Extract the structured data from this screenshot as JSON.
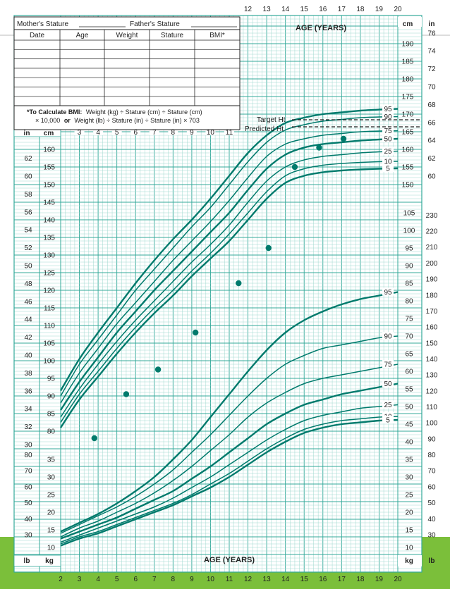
{
  "colors": {
    "grid": "#33a99a",
    "grid_fine": "#9fd8cf",
    "curve": "#007a6c",
    "dot": "#007a6c",
    "bottom_band": "#7bbf3a",
    "ink": "#1f1f1f"
  },
  "record_table": {
    "mother_label": "Mother's Stature",
    "father_label": "Father's Stature",
    "headers": [
      "Date",
      "Age",
      "Weight",
      "Stature",
      "BMI*"
    ],
    "bmi_note_bold": "*To Calculate BMI:",
    "bmi_note_line1": "Weight (kg) ÷ Stature (cm) ÷ Stature (cm)",
    "bmi_note_line2": "× 10,000",
    "bmi_note_or": "or",
    "bmi_note_line3": "Weight (lb) ÷ Stature (in) ÷ Stature (in) × 703"
  },
  "labels": {
    "age_title_top": "AGE (YEARS)",
    "age_title_bottom": "AGE (YEARS)",
    "target_ht": "Target Ht",
    "predicted_ht": "Predicted Ht",
    "unit_in": "in",
    "unit_cm": "cm",
    "unit_lb": "lb",
    "unit_kg": "kg"
  },
  "chart_data": {
    "type": "line",
    "x_label": "AGE (YEARS)",
    "x_ticks_top": [
      "12",
      "13",
      "14",
      "15",
      "16",
      "17",
      "18",
      "19",
      "20"
    ],
    "x_ticks_mid": [
      "3",
      "4",
      "5",
      "6",
      "7",
      "8",
      "9",
      "10",
      "11"
    ],
    "x_ticks_bottom": [
      "2",
      "3",
      "4",
      "5",
      "6",
      "7",
      "8",
      "9",
      "10",
      "11",
      "12",
      "13",
      "14",
      "15",
      "16",
      "17",
      "18",
      "19",
      "20"
    ],
    "xlim": [
      2,
      20
    ],
    "stature": {
      "ylim_cm": [
        75,
        197
      ],
      "left_cm_ticks": [
        "80",
        "85",
        "90",
        "95",
        "100",
        "105",
        "110",
        "115",
        "120",
        "125",
        "130",
        "135",
        "140",
        "145",
        "150",
        "155",
        "160"
      ],
      "left_in_ticks": [
        "30",
        "32",
        "34",
        "36",
        "38",
        "40",
        "42",
        "44",
        "46",
        "48",
        "50",
        "52",
        "54",
        "56",
        "58",
        "60",
        "62"
      ],
      "right_cm_ticks_upper": [
        "150",
        "155",
        "160",
        "165",
        "170",
        "175",
        "180",
        "185",
        "190"
      ],
      "right_in_ticks_upper": [
        "60",
        "62",
        "64",
        "66",
        "68",
        "70",
        "72",
        "74",
        "76"
      ],
      "percentile_labels": [
        "95",
        "90",
        "75",
        "50",
        "25",
        "10",
        "5"
      ],
      "series": [
        {
          "name": "95",
          "x": [
            2,
            3,
            4,
            5,
            6,
            7,
            8,
            9,
            10,
            11,
            12,
            13,
            14,
            15,
            16,
            17,
            18,
            19,
            20
          ],
          "y": [
            91.5,
            100.5,
            108,
            115,
            122,
            128.5,
            134.5,
            140,
            146,
            152.5,
            159,
            164,
            167.5,
            169,
            170,
            170.5,
            171,
            171.3,
            171.5
          ]
        },
        {
          "name": "90",
          "x": [
            2,
            3,
            4,
            5,
            6,
            7,
            8,
            9,
            10,
            11,
            12,
            13,
            14,
            15,
            16,
            17,
            18,
            19,
            20
          ],
          "y": [
            90,
            99,
            106,
            113,
            120,
            126,
            132,
            138,
            143.5,
            150,
            156.5,
            162,
            165.5,
            167,
            168,
            168.5,
            169,
            169.2,
            169.3
          ]
        },
        {
          "name": "75",
          "x": [
            2,
            3,
            4,
            5,
            6,
            7,
            8,
            9,
            10,
            11,
            12,
            13,
            14,
            15,
            16,
            17,
            18,
            19,
            20
          ],
          "y": [
            88,
            96.5,
            103.5,
            110.5,
            116.5,
            122.5,
            128.5,
            134,
            139.5,
            145.5,
            152,
            158,
            161.5,
            163,
            164,
            164.5,
            165,
            165.2,
            165.3
          ]
        },
        {
          "name": "50",
          "x": [
            2,
            3,
            4,
            5,
            6,
            7,
            8,
            9,
            10,
            11,
            12,
            13,
            14,
            15,
            16,
            17,
            18,
            19,
            20
          ],
          "y": [
            86,
            94,
            101,
            108,
            114,
            120,
            125.5,
            131,
            136.5,
            142,
            148.5,
            154.5,
            158.5,
            160.5,
            161.5,
            162,
            162.5,
            162.8,
            163
          ]
        },
        {
          "name": "25",
          "x": [
            2,
            3,
            4,
            5,
            6,
            7,
            8,
            9,
            10,
            11,
            12,
            13,
            14,
            15,
            16,
            17,
            18,
            19,
            20
          ],
          "y": [
            84,
            92,
            99,
            105.5,
            111.5,
            117,
            122.5,
            128,
            133,
            138.5,
            145,
            151,
            155,
            157,
            158,
            158.5,
            159,
            159.3,
            159.5
          ]
        },
        {
          "name": "10",
          "x": [
            2,
            3,
            4,
            5,
            6,
            7,
            8,
            9,
            10,
            11,
            12,
            13,
            14,
            15,
            16,
            17,
            18,
            19,
            20
          ],
          "y": [
            82.5,
            90.5,
            97,
            103.5,
            109.5,
            115,
            120,
            125.5,
            130.5,
            136,
            142,
            148,
            152.5,
            154.5,
            155.5,
            156,
            156.3,
            156.5,
            156.6
          ]
        },
        {
          "name": "5",
          "x": [
            2,
            3,
            4,
            5,
            6,
            7,
            8,
            9,
            10,
            11,
            12,
            13,
            14,
            15,
            16,
            17,
            18,
            19,
            20
          ],
          "y": [
            81,
            89,
            95.5,
            102,
            108,
            113.5,
            118.5,
            124,
            129,
            134,
            140,
            146,
            150.5,
            152.5,
            153.5,
            154,
            154.3,
            154.5,
            154.6
          ]
        }
      ],
      "measurements": [
        {
          "age": 14.5,
          "cm": 155
        },
        {
          "age": 15.8,
          "cm": 160.5
        },
        {
          "age": 17.1,
          "cm": 163
        }
      ]
    },
    "weight": {
      "ylim_kg": [
        8,
        120
      ],
      "left_kg_ticks": [
        "10",
        "15",
        "20",
        "25",
        "30",
        "35"
      ],
      "left_lb_ticks": [
        "30",
        "40",
        "50",
        "60",
        "70",
        "80"
      ],
      "right_kg_ticks": [
        "10",
        "15",
        "20",
        "25",
        "30",
        "35",
        "40",
        "45",
        "50",
        "55",
        "60",
        "65",
        "70",
        "75",
        "80",
        "85",
        "90",
        "95",
        "100",
        "105"
      ],
      "right_lb_ticks": [
        "30",
        "40",
        "50",
        "60",
        "70",
        "80",
        "90",
        "100",
        "110",
        "120",
        "130",
        "140",
        "150",
        "160",
        "170",
        "180",
        "190",
        "200",
        "210",
        "220",
        "230"
      ],
      "percentile_labels": [
        "95",
        "90",
        "75",
        "50",
        "25",
        "10",
        "5"
      ],
      "series": [
        {
          "name": "95",
          "x": [
            2,
            3,
            4,
            5,
            6,
            7,
            8,
            9,
            10,
            11,
            12,
            13,
            14,
            15,
            16,
            17,
            18,
            19,
            20
          ],
          "y": [
            14.5,
            17,
            19.5,
            22.5,
            26,
            30,
            35,
            40.5,
            47,
            53.5,
            60,
            66,
            71,
            74.5,
            77,
            79,
            80.5,
            81.5,
            82.5
          ]
        },
        {
          "name": "90",
          "x": [
            2,
            3,
            4,
            5,
            6,
            7,
            8,
            9,
            10,
            11,
            12,
            13,
            14,
            15,
            16,
            17,
            18,
            19,
            20
          ],
          "y": [
            14,
            16.5,
            19,
            21.5,
            24.5,
            28,
            32,
            37,
            42,
            47.5,
            53,
            58,
            62,
            64.5,
            66.5,
            67.5,
            68.5,
            69.5,
            70
          ]
        },
        {
          "name": "75",
          "x": [
            2,
            3,
            4,
            5,
            6,
            7,
            8,
            9,
            10,
            11,
            12,
            13,
            14,
            15,
            16,
            17,
            18,
            19,
            20
          ],
          "y": [
            13,
            15.5,
            17.5,
            20,
            22.5,
            25.5,
            29,
            33,
            37.5,
            42,
            47,
            51,
            54,
            56.5,
            58,
            59,
            60,
            61,
            62
          ]
        },
        {
          "name": "50",
          "x": [
            2,
            3,
            4,
            5,
            6,
            7,
            8,
            9,
            10,
            11,
            12,
            13,
            14,
            15,
            16,
            17,
            18,
            19,
            20
          ],
          "y": [
            12.5,
            14.5,
            16.5,
            18.5,
            21,
            23.5,
            26,
            29.5,
            33,
            37,
            41,
            45,
            48,
            50.5,
            52,
            53.5,
            54.5,
            55.5,
            56.5
          ]
        },
        {
          "name": "25",
          "x": [
            2,
            3,
            4,
            5,
            6,
            7,
            8,
            9,
            10,
            11,
            12,
            13,
            14,
            15,
            16,
            17,
            18,
            19,
            20
          ],
          "y": [
            11.5,
            13.5,
            15.5,
            17.5,
            19.5,
            21.5,
            24,
            27,
            30,
            33.5,
            37,
            40.5,
            43.5,
            46,
            47.5,
            48.5,
            49.5,
            50,
            50.5
          ]
        },
        {
          "name": "10",
          "x": [
            2,
            3,
            4,
            5,
            6,
            7,
            8,
            9,
            10,
            11,
            12,
            13,
            14,
            15,
            16,
            17,
            18,
            19,
            20
          ],
          "y": [
            11,
            13,
            14.5,
            16.5,
            18.5,
            20.5,
            22.5,
            25,
            28,
            31,
            34.5,
            38,
            41,
            43.5,
            45,
            46,
            46.5,
            47,
            47.2
          ]
        },
        {
          "name": "5",
          "x": [
            2,
            3,
            4,
            5,
            6,
            7,
            8,
            9,
            10,
            11,
            12,
            13,
            14,
            15,
            16,
            17,
            18,
            19,
            20
          ],
          "y": [
            10.5,
            12.5,
            14,
            16,
            18,
            20,
            22,
            24.5,
            27,
            30,
            33.5,
            37,
            40,
            42.5,
            44,
            45,
            45.5,
            46,
            46.2
          ]
        }
      ],
      "measurements": [
        {
          "age": 3.8,
          "kg": 41
        },
        {
          "age": 5.5,
          "kg": 53.5
        },
        {
          "age": 7.2,
          "kg": 60.5
        },
        {
          "age": 9.2,
          "kg": 71
        },
        {
          "age": 11.5,
          "kg": 85
        },
        {
          "age": 13.1,
          "kg": 95
        }
      ]
    }
  }
}
